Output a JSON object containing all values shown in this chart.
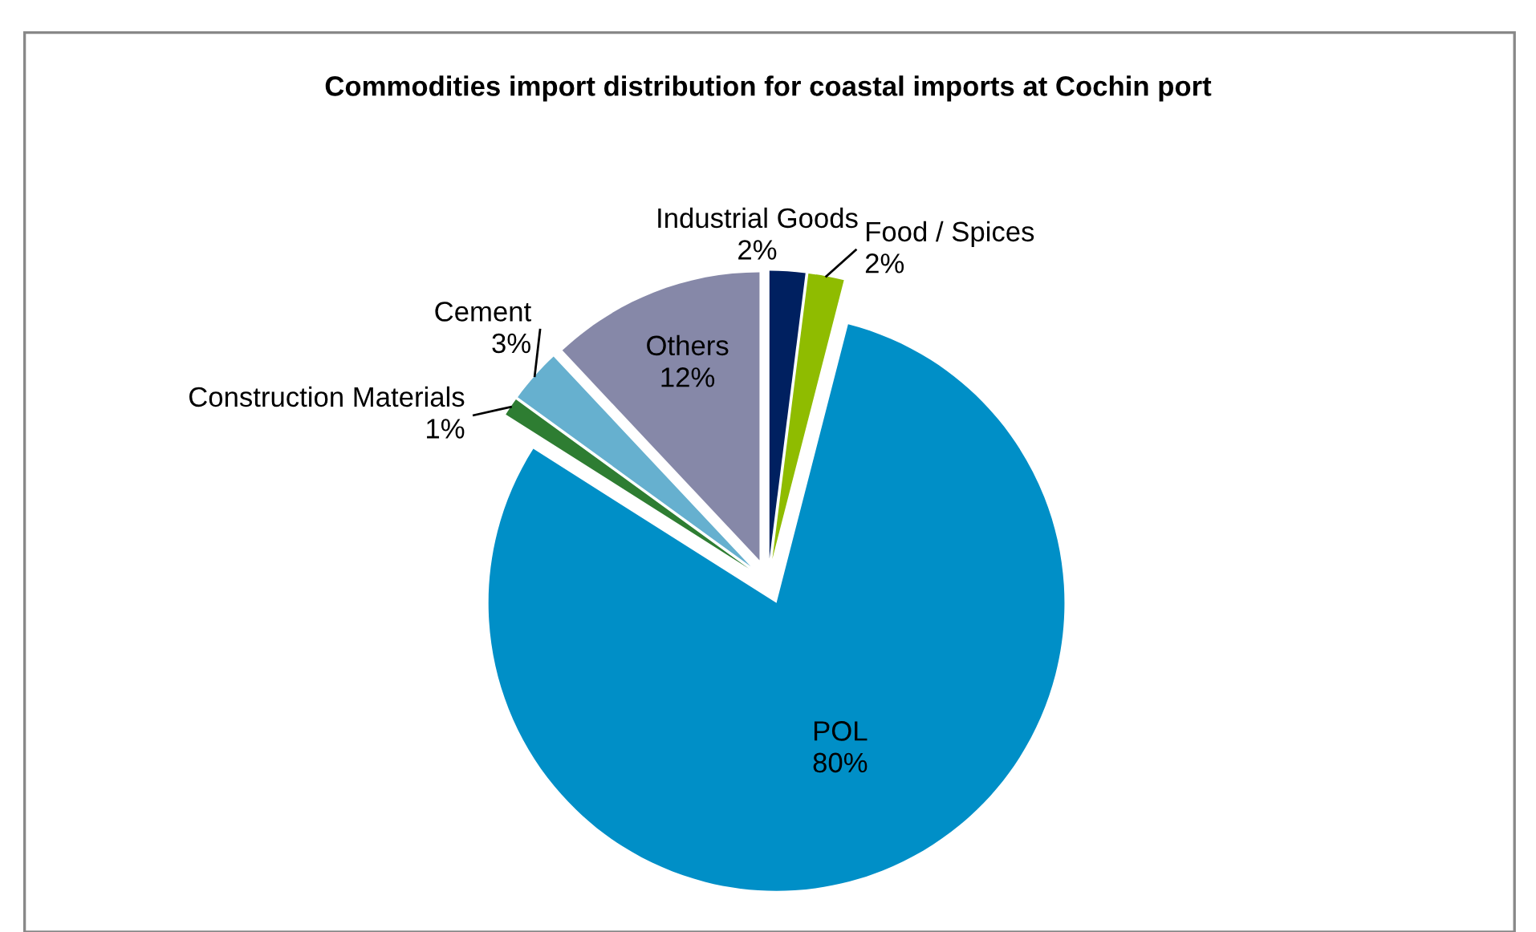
{
  "chart_data": {
    "type": "pie",
    "title": "Commodities import distribution for coastal imports at Cochin port",
    "categories": [
      "Industrial Goods",
      "Food / Spices",
      "POL",
      "Construction Materials",
      "Cement",
      "Others"
    ],
    "values": [
      2,
      2,
      80,
      1,
      3,
      12
    ],
    "colors": [
      "#002060",
      "#8fbc00",
      "#008fc7",
      "#2e7d32",
      "#66b0cf",
      "#8688a8"
    ],
    "value_labels": [
      "2%",
      "2%",
      "80%",
      "1%",
      "3%",
      "12%"
    ]
  }
}
